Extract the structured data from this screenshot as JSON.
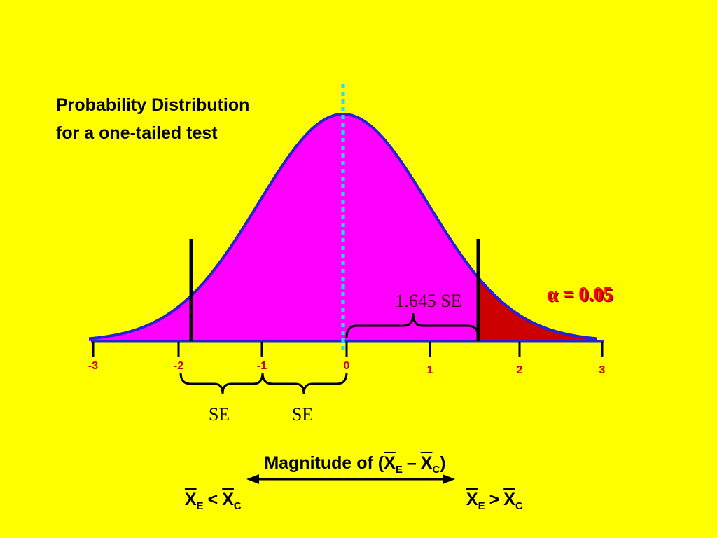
{
  "title": [
    "Probability Distribution",
    "for a one-tailed test"
  ],
  "axis_ticks": [
    "-3",
    "-2",
    "-1",
    "0",
    "1",
    "2",
    "3"
  ],
  "critical_label": "1.645 SE",
  "alpha_label": "α = 0.05",
  "se_labels": [
    "SE",
    "SE"
  ],
  "axis_title": {
    "prefix": "Magnitude of (",
    "terms": [
      {
        "symbol": "X",
        "subscript": "E"
      },
      {
        "symbol": "X",
        "subscript": "C"
      }
    ],
    "operator": "–",
    "suffix": ")"
  },
  "left_end": {
    "terms": [
      {
        "symbol": "X",
        "subscript": "E"
      },
      {
        "symbol": "X",
        "subscript": "C"
      }
    ],
    "operator": "<"
  },
  "right_end": {
    "terms": [
      {
        "symbol": "X",
        "subscript": "E"
      },
      {
        "symbol": "X",
        "subscript": "C"
      }
    ],
    "operator": ">"
  }
}
